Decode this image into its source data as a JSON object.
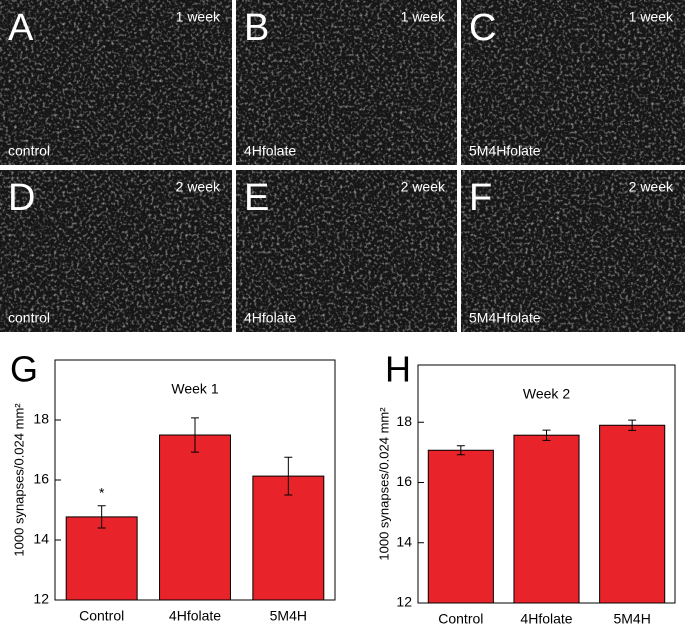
{
  "panels": [
    {
      "letter": "A",
      "time": "1 week",
      "label": "control"
    },
    {
      "letter": "B",
      "time": "1 week",
      "label": "4Hfolate"
    },
    {
      "letter": "C",
      "time": "1 week",
      "label": "5M4Hfolate"
    },
    {
      "letter": "D",
      "time": "2 week",
      "label": "control"
    },
    {
      "letter": "E",
      "time": "2 week",
      "label": "4Hfolate"
    },
    {
      "letter": "F",
      "time": "2 week",
      "label": "5M4Hfolate"
    }
  ],
  "chart_data": [
    {
      "type": "bar",
      "panel": "G",
      "title": "Week 1",
      "y_label": "1000 synapses/0.024 mm²",
      "categories": [
        "Control",
        "4Hfolate",
        "5M4H"
      ],
      "values": [
        14.77,
        17.5,
        16.13
      ],
      "errors": [
        0.37,
        0.57,
        0.63
      ],
      "significance": [
        "*",
        null,
        null
      ],
      "color": "#e8242a",
      "ylim": [
        12,
        20
      ],
      "yticks": [
        12,
        14,
        16,
        18
      ]
    },
    {
      "type": "bar",
      "panel": "H",
      "title": "Week 2",
      "y_label": "1000 synapses/0.024 mm²",
      "categories": [
        "Control",
        "4Hfolate",
        "5M4H"
      ],
      "values": [
        17.07,
        17.57,
        17.9
      ],
      "errors": [
        0.15,
        0.17,
        0.17
      ],
      "significance": [
        null,
        null,
        null
      ],
      "color": "#e8242a",
      "ylim": [
        12,
        19.9
      ],
      "yticks": [
        12,
        14,
        16,
        18
      ]
    }
  ]
}
